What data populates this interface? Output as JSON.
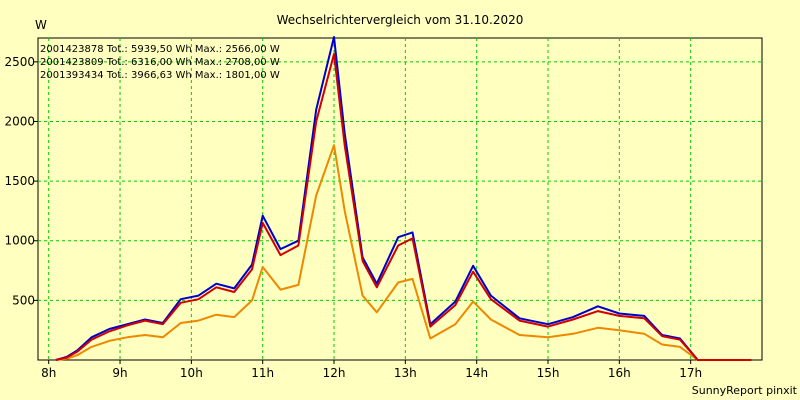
{
  "chart_data": {
    "type": "line",
    "title": "Wechselrichtervergleich vom 31.10.2020",
    "ylabel": "W",
    "xlabel": "",
    "ylim": [
      0,
      2700
    ],
    "xlim": [
      7.85,
      18.0
    ],
    "grid": true,
    "legend_position": "top-left",
    "x_ticks": [
      8,
      9,
      10,
      11,
      12,
      13,
      14,
      15,
      16,
      17
    ],
    "x_tick_labels": [
      "8h",
      "9h",
      "10h",
      "11h",
      "12h",
      "13h",
      "14h",
      "15h",
      "16h",
      "17h"
    ],
    "y_ticks": [
      500,
      1000,
      1500,
      2000,
      2500
    ],
    "y_tick_labels": [
      "500",
      "1000",
      "1500",
      "2000",
      "2500"
    ],
    "x": [
      8.1,
      8.25,
      8.4,
      8.6,
      8.85,
      9.1,
      9.35,
      9.6,
      9.85,
      10.1,
      10.35,
      10.6,
      10.85,
      11.0,
      11.25,
      11.5,
      11.75,
      12.0,
      12.15,
      12.4,
      12.6,
      12.9,
      13.1,
      13.35,
      13.7,
      13.95,
      14.2,
      14.6,
      15.0,
      15.35,
      15.7,
      16.0,
      16.35,
      16.6,
      16.85,
      17.1,
      17.3,
      17.6,
      17.85
    ],
    "series": [
      {
        "name": "2001423878 Tot.: 5939,50 Wh Max.: 2566,00 W",
        "color": "#d00000",
        "values": [
          0,
          20,
          70,
          170,
          240,
          290,
          330,
          300,
          480,
          510,
          610,
          570,
          760,
          1150,
          880,
          960,
          2000,
          2566,
          1800,
          830,
          610,
          960,
          1020,
          280,
          460,
          740,
          510,
          330,
          280,
          340,
          410,
          370,
          350,
          200,
          170,
          0,
          0,
          0,
          0
        ]
      },
      {
        "name": "2001423809 Tot.: 6316,00 Wh Max.: 2708,00 W",
        "color": "#0000cc",
        "values": [
          0,
          25,
          80,
          190,
          260,
          300,
          340,
          310,
          510,
          540,
          640,
          600,
          800,
          1210,
          930,
          1000,
          2100,
          2708,
          1900,
          860,
          640,
          1030,
          1070,
          300,
          490,
          790,
          540,
          350,
          300,
          360,
          450,
          390,
          370,
          210,
          180,
          0,
          0,
          0,
          0
        ]
      },
      {
        "name": "2001393434 Tot.: 3966,63 Wh Max.: 1801,00 W",
        "color": "#ee8800",
        "values": [
          0,
          10,
          40,
          110,
          160,
          190,
          210,
          190,
          310,
          330,
          380,
          360,
          500,
          780,
          590,
          630,
          1380,
          1801,
          1250,
          540,
          400,
          650,
          680,
          180,
          300,
          490,
          340,
          210,
          190,
          220,
          270,
          250,
          220,
          130,
          110,
          0,
          0,
          0,
          0
        ]
      }
    ],
    "footer": "SunnyReport pinxit"
  }
}
